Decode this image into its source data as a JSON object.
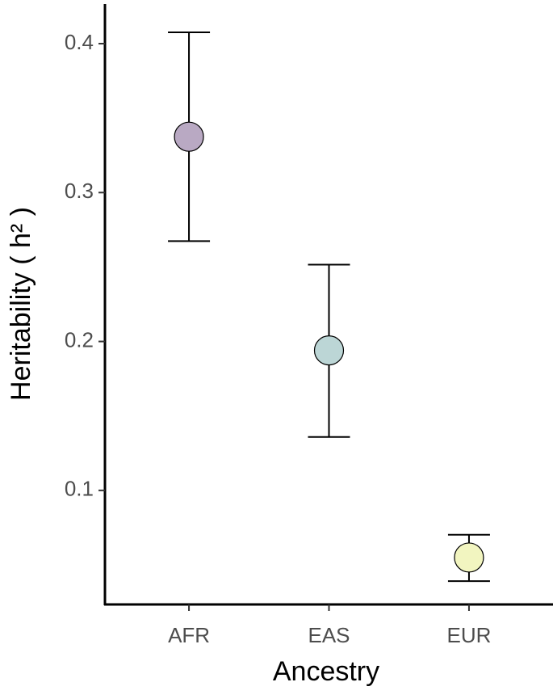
{
  "chart_data": {
    "type": "scatter",
    "x_label": "Ancestry",
    "y_label": "Heritability ( h² )",
    "categories": [
      "AFR",
      "EAS",
      "EUR"
    ],
    "series": [
      {
        "values": [
          0.3375,
          0.194,
          0.0549
        ],
        "lower": [
          0.2674,
          0.1359,
          0.0391
        ],
        "upper": [
          0.4076,
          0.2516,
          0.0702
        ],
        "colors": [
          "#b9a9c3",
          "#bcd6d6",
          "#f2f5c0"
        ]
      }
    ],
    "ylim": [
      0.0234,
      0.4266
    ],
    "yticks": [
      0.1,
      0.2,
      0.3,
      0.4
    ],
    "grid": false
  }
}
